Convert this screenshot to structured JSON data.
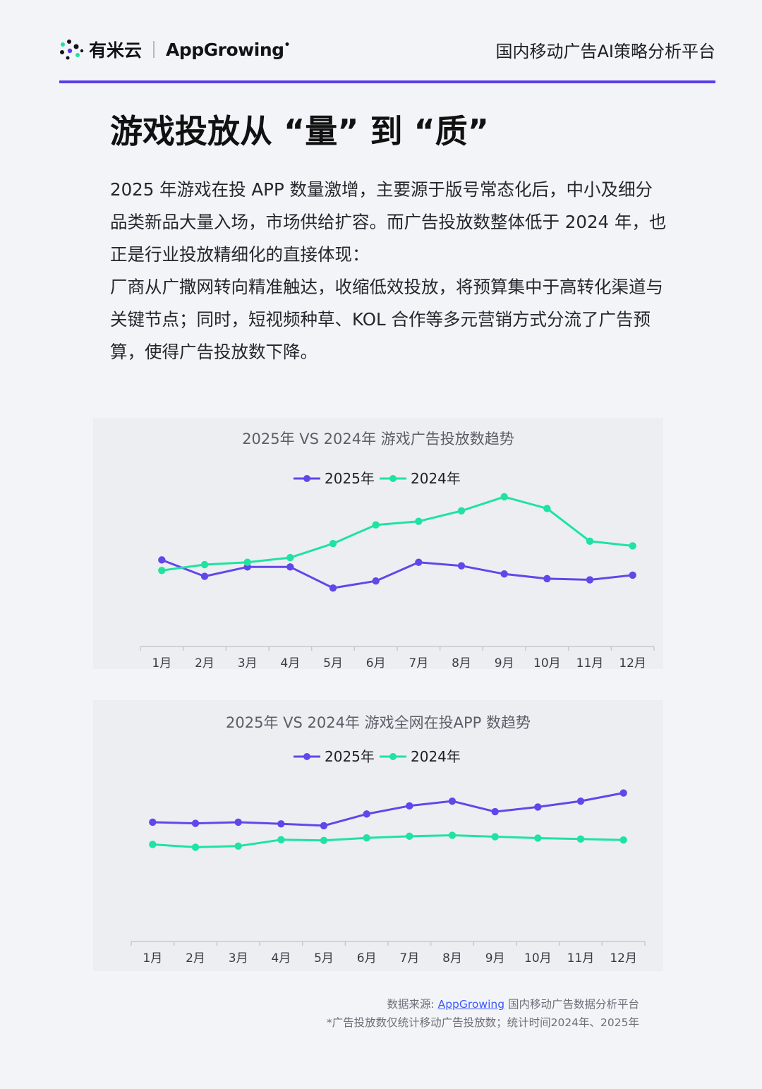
{
  "header": {
    "brand_cn": "有米云",
    "brand_en_pre": "App",
    "brand_en_mid": "Growing",
    "platform": "国内移动广告AI策略分析平台"
  },
  "title": "游戏投放从 “量” 到 “质”",
  "paragraphs": [
    "2025 年游戏在投 APP 数量激增，主要源于版号常态化后，中小及细分品类新品大量入场，市场供给扩容。而广告投放数整体低于 2024 年，也正是行业投放精细化的直接体现：",
    "厂商从广撒网转向精准触达，收缩低效投放，将预算集中于高转化渠道与关键节点；同时，短视频种草、KOL 合作等多元营销方式分流了广告预算，使得广告投放数下降。"
  ],
  "colors": {
    "accent": "#5b3de8",
    "series_2025": "#6147ea",
    "series_2024": "#1ee3a1"
  },
  "chart_data": [
    {
      "type": "line",
      "title": "2025年 VS 2024年 游戏广告投放数趋势",
      "categories": [
        "1月",
        "2月",
        "3月",
        "4月",
        "5月",
        "6月",
        "7月",
        "8月",
        "9月",
        "10月",
        "11月",
        "12月"
      ],
      "series": [
        {
          "name": "2025年",
          "color": "#6147ea",
          "values": [
            57,
            50,
            54,
            54,
            45,
            48,
            56,
            54.5,
            51,
            49,
            48.5,
            50.5
          ]
        },
        {
          "name": "2024年",
          "color": "#1ee3a1",
          "values": [
            52.5,
            55,
            56,
            58,
            64,
            72,
            73.5,
            78,
            84,
            79,
            65,
            63
          ]
        }
      ],
      "ylim": [
        20,
        90
      ],
      "grid": false,
      "legend": "top-center"
    },
    {
      "type": "line",
      "title": "2025年 VS 2024年 游戏全网在投APP 数趋势",
      "categories": [
        "1月",
        "2月",
        "3月",
        "4月",
        "5月",
        "6月",
        "7月",
        "8月",
        "9月",
        "10月",
        "11月",
        "12月"
      ],
      "series": [
        {
          "name": "2025年",
          "color": "#6147ea",
          "values": [
            56,
            55.5,
            56,
            55.3,
            54.5,
            59.5,
            63,
            65,
            60.5,
            62.5,
            65,
            68.5
          ]
        },
        {
          "name": "2024年",
          "color": "#1ee3a1",
          "values": [
            46.5,
            45.3,
            45.8,
            48.5,
            48.2,
            49.3,
            50,
            50.4,
            49.8,
            49.2,
            48.8,
            48.4
          ]
        }
      ],
      "ylim": [
        5,
        75
      ],
      "grid": false,
      "legend": "top-center"
    }
  ],
  "footer": {
    "source_label": "数据来源: ",
    "source_link": "AppGrowing",
    "source_rest": " 国内移动广告数据分析平台",
    "note": "*广告投放数仅统计移动广告投放数；统计时间2024年、2025年"
  }
}
